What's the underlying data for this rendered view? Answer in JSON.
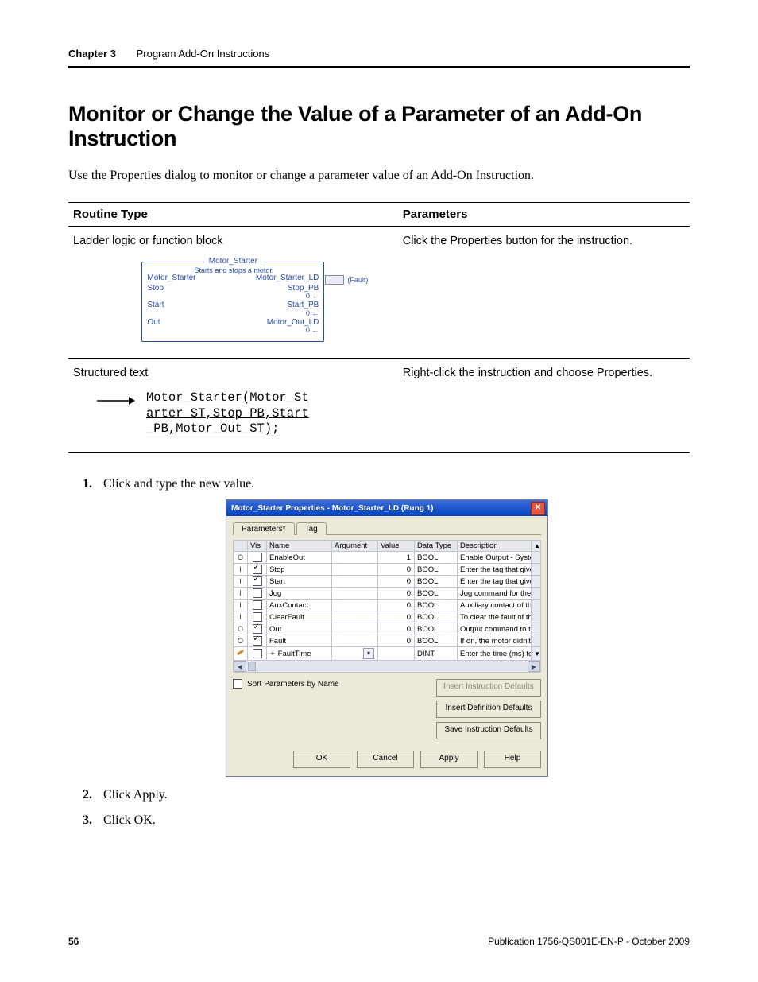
{
  "header": {
    "chapter_label": "Chapter 3",
    "chapter_title": "Program Add-On Instructions"
  },
  "section_title": "Monitor or Change the Value of a Parameter of an Add-On Instruction",
  "intro_text": "Use the Properties dialog to monitor or change a parameter value of an Add-On Instruction.",
  "routine_table": {
    "headers": {
      "col1": "Routine Type",
      "col2": "Parameters"
    },
    "row1": {
      "type_label": "Ladder logic or function block",
      "param_text": "Click the Properties button for the instruction.",
      "ladder": {
        "title": "Motor_Starter",
        "subtitle": "Starts and stops a motor",
        "top": {
          "left": "Motor_Starter",
          "right": "Motor_Starter_LD"
        },
        "ext_label": "(Fault)",
        "rows": [
          {
            "l": "Stop",
            "r": "Stop_PB",
            "zero": "0 ←"
          },
          {
            "l": "Start",
            "r": "Start_PB",
            "zero": "0 ←"
          },
          {
            "l": "Out",
            "r": "Motor_Out_LD",
            "zero": "0 ←"
          }
        ]
      }
    },
    "row2": {
      "type_label": "Structured text",
      "param_text": "Right-click the instruction and choose Properties.",
      "code_lines": [
        "Motor_Starter(Motor_St",
        "arter_ST,Stop_PB,Start",
        "_PB,Motor_Out_ST);"
      ]
    }
  },
  "steps": {
    "s1": "Click and type the new value.",
    "s2": "Click Apply.",
    "s3": "Click OK."
  },
  "dialog": {
    "title": "Motor_Starter Properties - Motor_Starter_LD (Rung 1)",
    "tabs": {
      "t1": "Parameters*",
      "t2": "Tag"
    },
    "columns": {
      "c0": "",
      "c1": "Vis",
      "c2": "Name",
      "c3": "Argument",
      "c4": "Value",
      "c5": "Data Type",
      "c6": "Description"
    },
    "col_widths": {
      "c0": "18px",
      "c1": "24px",
      "c2": "82px",
      "c3": "58px",
      "c4": "46px",
      "c5": "54px",
      "c6": "auto",
      "sc": "12px"
    },
    "rows": [
      {
        "io": "O",
        "vis": false,
        "name": "EnableOut",
        "arg": "",
        "value": "1",
        "dtype": "BOOL",
        "desc": "Enable Output - System Defined"
      },
      {
        "io": "I",
        "vis": true,
        "name": "Stop",
        "arg": "",
        "value": "0",
        "dtype": "BOOL",
        "desc": "Enter the tag that gives the stop"
      },
      {
        "io": "I",
        "vis": true,
        "name": "Start",
        "arg": "",
        "value": "0",
        "dtype": "BOOL",
        "desc": "Enter the tag that gives the start"
      },
      {
        "io": "I",
        "vis": false,
        "name": "Jog",
        "arg": "",
        "value": "0",
        "dtype": "BOOL",
        "desc": "Jog command for the motor.  To"
      },
      {
        "io": "I",
        "vis": false,
        "name": "AuxContact",
        "arg": "",
        "value": "0",
        "dtype": "BOOL",
        "desc": "Auxiliary contact of the motor. M"
      },
      {
        "io": "I",
        "vis": false,
        "name": "ClearFault",
        "arg": "",
        "value": "0",
        "dtype": "BOOL",
        "desc": "To clear the fault of the motor, tu"
      },
      {
        "io": "O",
        "vis": true,
        "name": "Out",
        "arg": "",
        "value": "0",
        "dtype": "BOOL",
        "desc": "Output command to the motor st"
      },
      {
        "io": "O",
        "vis": true,
        "name": "Fault",
        "arg": "",
        "value": "0",
        "dtype": "BOOL",
        "desc": "If on, the motor didn't start or sto"
      },
      {
        "io": "P",
        "vis": false,
        "name": "FaultTime",
        "arg": "",
        "value": "",
        "dtype": "DINT",
        "desc": "Enter the time (ms) to wait for the",
        "expandable": true,
        "combo": true
      }
    ],
    "sort_label": "Sort Parameters by Name",
    "buttons": {
      "insert_instr": "Insert Instruction Defaults",
      "insert_def": "Insert Definition Defaults",
      "save_def": "Save Instruction Defaults",
      "ok": "OK",
      "cancel": "Cancel",
      "apply": "Apply",
      "help": "Help"
    },
    "colors": {
      "titlebar_start": "#3a6bd8",
      "titlebar_end": "#0443c0",
      "dialog_bg": "#ece9d8",
      "grid_border": "#bfc5d2",
      "grid_header_bg": "#e6e8ee",
      "close_bg": "#e25943"
    }
  },
  "footer": {
    "page_number": "56",
    "pub": "Publication 1756-QS001E-EN-P - October 2009"
  }
}
